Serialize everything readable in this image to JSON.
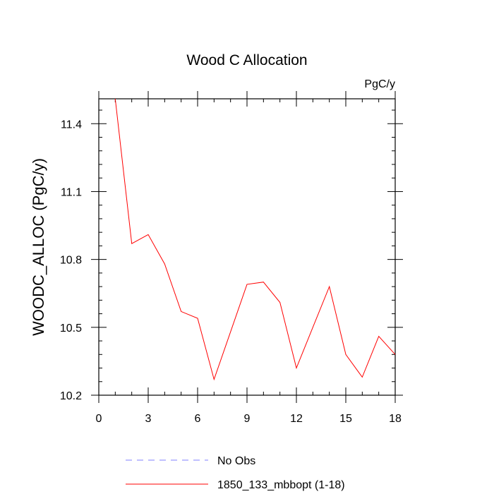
{
  "chart_data": {
    "type": "line",
    "title": "Wood C Allocation",
    "units_label": "PgC/y",
    "xlabel": "",
    "ylabel": "WOODC_ALLOC  (PgC/y)",
    "xlim": [
      0,
      18
    ],
    "ylim": [
      10.2,
      11.51
    ],
    "x_ticks": [
      0,
      3,
      6,
      9,
      12,
      15,
      18
    ],
    "y_ticks": [
      10.2,
      10.5,
      10.8,
      11.1,
      11.4
    ],
    "x_tick_labels": [
      "0",
      "3",
      "6",
      "9",
      "12",
      "15",
      "18"
    ],
    "y_tick_labels": [
      "10.2",
      "10.5",
      "10.8",
      "11.1",
      "11.4"
    ],
    "grid": false,
    "legend_position": "bottom",
    "series": [
      {
        "name": "1850_133_mbbopt (1-18)",
        "color": "#ff0000",
        "style": "solid",
        "x": [
          1,
          2,
          3,
          4,
          5,
          6,
          7,
          8,
          9,
          10,
          11,
          12,
          13,
          14,
          15,
          16,
          17,
          18
        ],
        "y": [
          11.51,
          10.87,
          10.91,
          10.78,
          10.57,
          10.54,
          10.27,
          10.48,
          10.69,
          10.7,
          10.61,
          10.32,
          10.5,
          10.68,
          10.38,
          10.28,
          10.46,
          10.38
        ]
      }
    ],
    "legend": [
      {
        "label": "No Obs",
        "color": "#8080ff",
        "style": "dashed"
      },
      {
        "label": "1850_133_mbbopt (1-18)",
        "color": "#ff0000",
        "style": "solid"
      }
    ]
  }
}
